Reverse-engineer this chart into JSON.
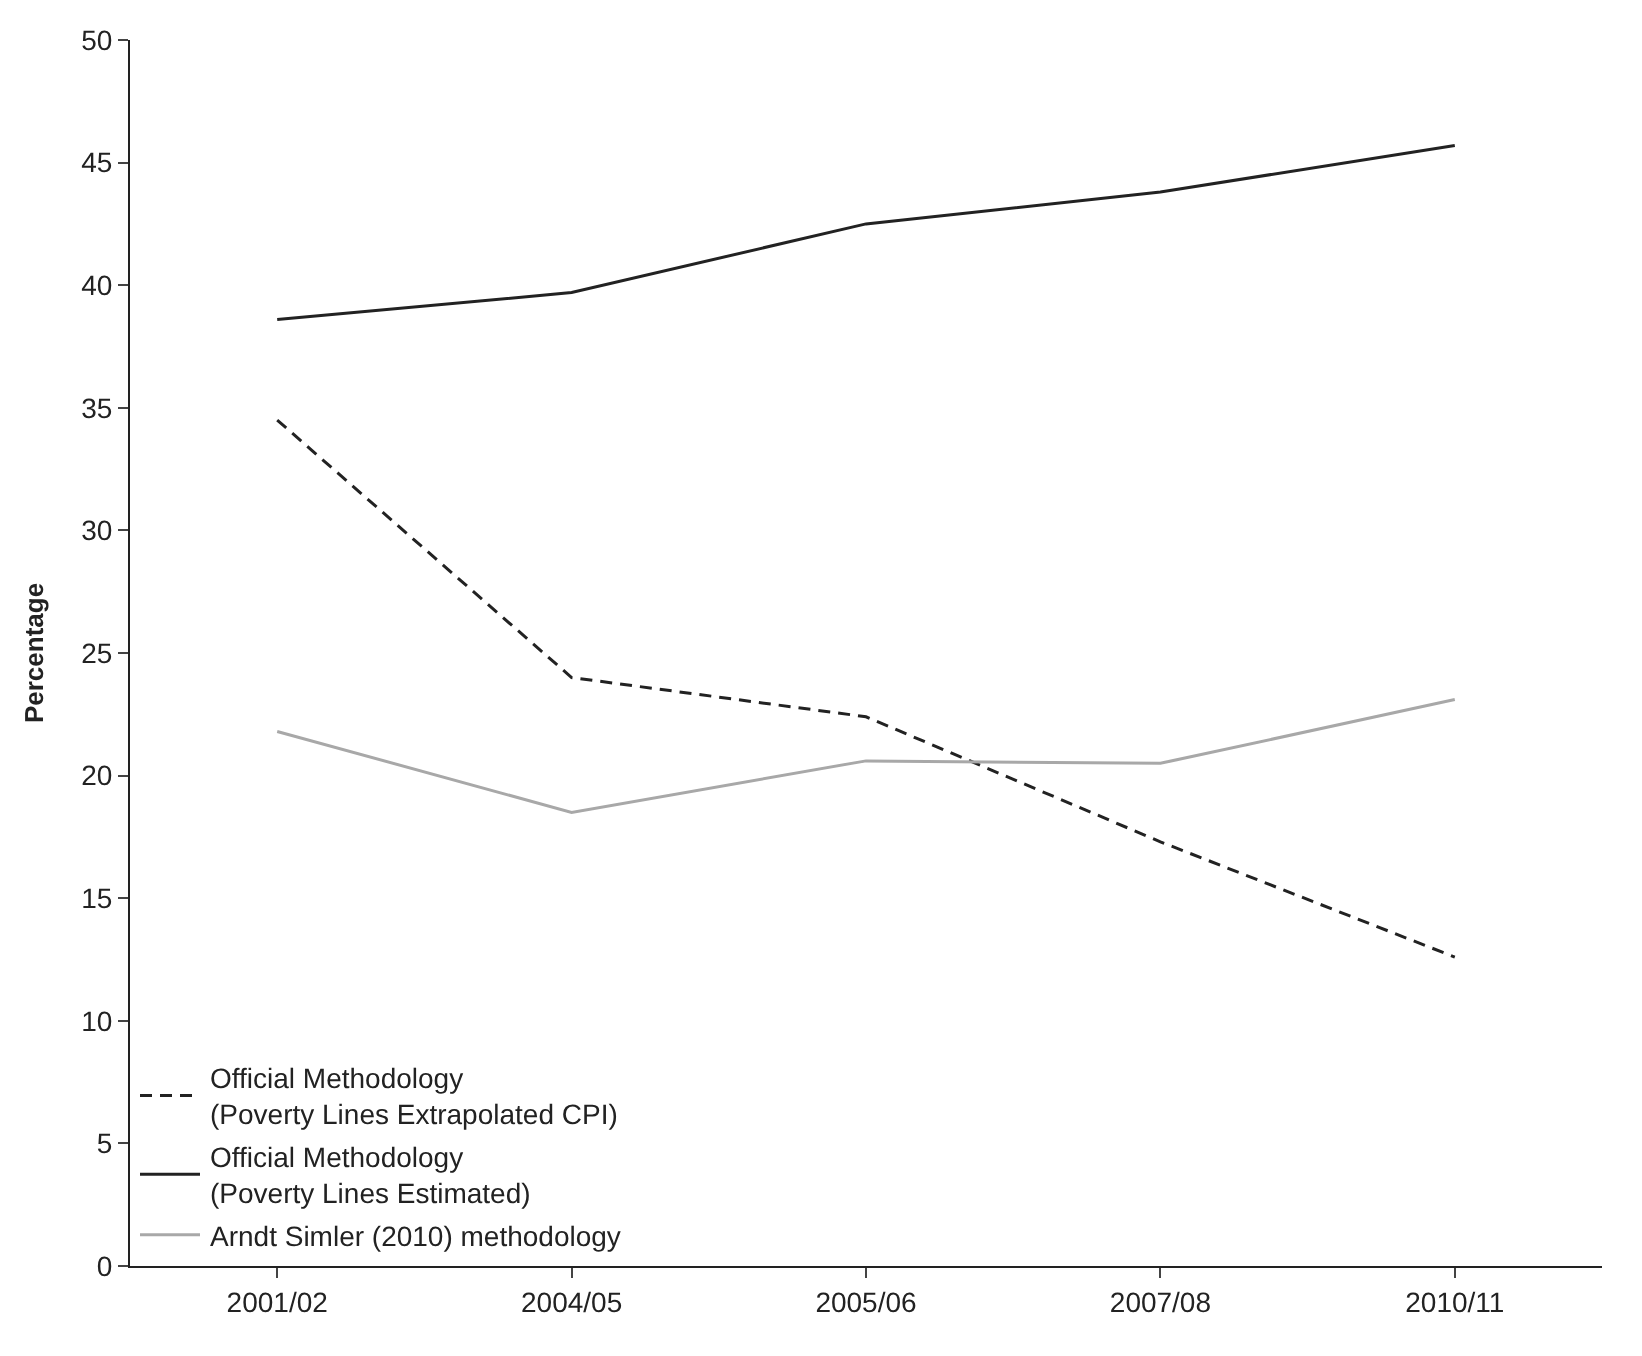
{
  "chart_data": {
    "type": "line",
    "ylabel": "Percentage",
    "categories": [
      "2001/02",
      "2004/05",
      "2005/06",
      "2007/08",
      "2010/11"
    ],
    "series": [
      {
        "name": "Official Methodology\n(Poverty Lines Extrapolated CPI)",
        "color": "#222222",
        "line_style": "dashed",
        "values": [
          34.5,
          24.0,
          22.4,
          17.3,
          12.6
        ]
      },
      {
        "name": "Official Methodology\n(Poverty Lines Estimated)",
        "color": "#222222",
        "line_style": "solid",
        "values": [
          38.6,
          39.7,
          42.5,
          43.8,
          45.7
        ]
      },
      {
        "name": "Arndt Simler (2010) methodology",
        "color": "#a8a8a8",
        "line_style": "solid",
        "values": [
          21.8,
          18.5,
          20.6,
          20.5,
          23.1
        ]
      }
    ],
    "ylim": [
      0,
      50
    ],
    "yticks": [
      0,
      5,
      10,
      15,
      20,
      25,
      30,
      35,
      40,
      45,
      50
    ],
    "legend": "bottom left",
    "marker": "none"
  }
}
